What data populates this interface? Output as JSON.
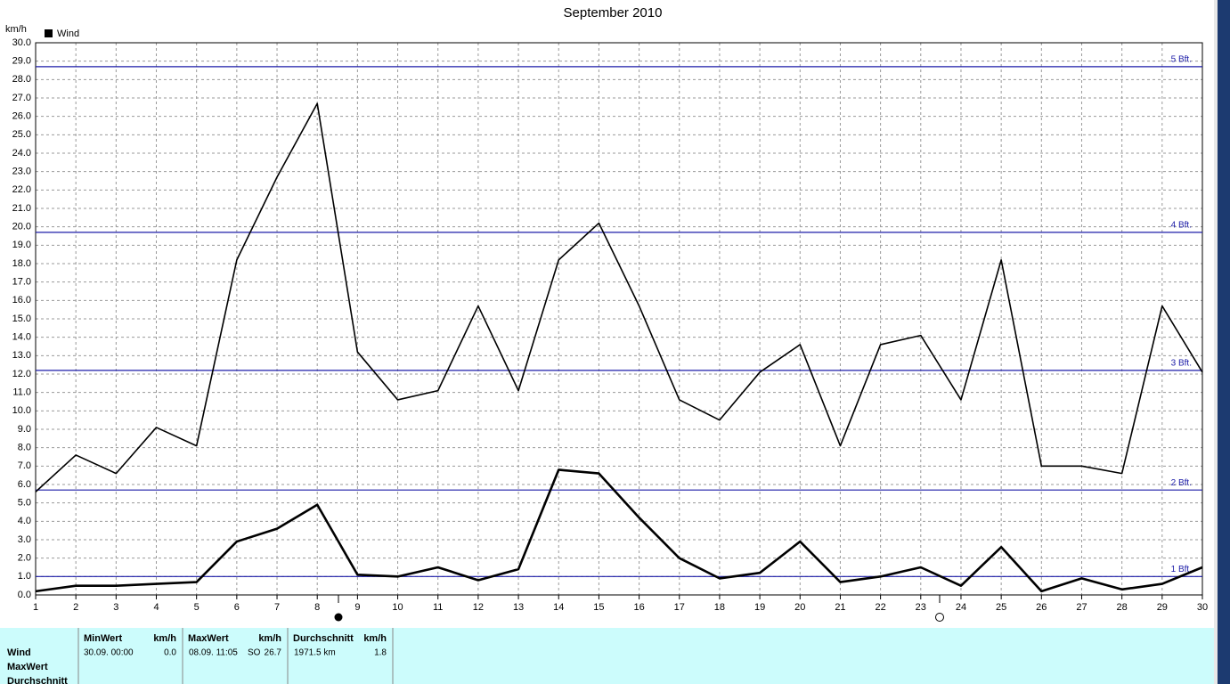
{
  "chart_data": {
    "type": "line",
    "title": "September 2010",
    "y_label": "km/h",
    "x": [
      1,
      2,
      3,
      4,
      5,
      6,
      7,
      8,
      9,
      10,
      11,
      12,
      13,
      14,
      15,
      16,
      17,
      18,
      19,
      20,
      21,
      22,
      23,
      24,
      25,
      26,
      27,
      28,
      29,
      30
    ],
    "xlim": [
      1,
      30
    ],
    "xticks": [
      1,
      2,
      3,
      4,
      5,
      6,
      7,
      8,
      9,
      10,
      11,
      12,
      13,
      14,
      15,
      16,
      17,
      18,
      19,
      20,
      21,
      22,
      23,
      24,
      25,
      26,
      27,
      28,
      29,
      30
    ],
    "ylim": [
      0,
      30
    ],
    "yticks": [
      {
        "value": 0,
        "label": "0.0"
      },
      {
        "value": 1,
        "label": "1.0"
      },
      {
        "value": 2,
        "label": "2.0"
      },
      {
        "value": 3,
        "label": "3.0"
      },
      {
        "value": 4,
        "label": "4.0"
      },
      {
        "value": 5,
        "label": "5.0"
      },
      {
        "value": 6,
        "label": "6.0"
      },
      {
        "value": 7,
        "label": "7.0"
      },
      {
        "value": 8,
        "label": "8.0"
      },
      {
        "value": 9,
        "label": "9.0"
      },
      {
        "value": 10,
        "label": "10.0"
      },
      {
        "value": 11,
        "label": "11.0"
      },
      {
        "value": 12,
        "label": "12.0"
      },
      {
        "value": 13,
        "label": "13.0"
      },
      {
        "value": 14,
        "label": "14.0"
      },
      {
        "value": 15,
        "label": "15.0"
      },
      {
        "value": 16,
        "label": "16.0"
      },
      {
        "value": 17,
        "label": "17.0"
      },
      {
        "value": 18,
        "label": "18.0"
      },
      {
        "value": 19,
        "label": "19.0"
      },
      {
        "value": 20,
        "label": "20.0"
      },
      {
        "value": 21,
        "label": "21.0"
      },
      {
        "value": 22,
        "label": "22.0"
      },
      {
        "value": 23,
        "label": "23.0"
      },
      {
        "value": 24,
        "label": "24.0"
      },
      {
        "value": 25,
        "label": "25.0"
      },
      {
        "value": 26,
        "label": "26.0"
      },
      {
        "value": 27,
        "label": "27.0"
      },
      {
        "value": 28,
        "label": "28.0"
      },
      {
        "value": 29,
        "label": "29.0"
      },
      {
        "value": 30,
        "label": "30.0"
      }
    ],
    "grid": true,
    "series": [
      {
        "name": "Wind",
        "color": "#000000",
        "values": [
          0.2,
          0.5,
          0.5,
          0.6,
          0.7,
          2.9,
          3.6,
          4.9,
          1.1,
          1.0,
          1.5,
          0.8,
          1.4,
          6.8,
          6.6,
          4.2,
          2.0,
          0.9,
          1.2,
          2.9,
          0.7,
          1.0,
          1.5,
          0.5,
          2.6,
          0.2,
          0.9,
          0.3,
          0.6,
          1.5
        ]
      },
      {
        "color": "#000000",
        "values": [
          5.6,
          7.6,
          6.6,
          9.1,
          8.1,
          18.2,
          22.7,
          26.7,
          13.2,
          10.6,
          11.1,
          15.7,
          11.1,
          18.2,
          20.2,
          15.7,
          10.6,
          9.5,
          12.1,
          13.6,
          8.1,
          13.6,
          14.1,
          10.6,
          18.2,
          7.0,
          7.0,
          6.6,
          15.7,
          12.1
        ]
      }
    ],
    "reference_lines": {
      "color": "#1c1ca8",
      "lines": [
        {
          "value": 1.0,
          "label": "1 Bft."
        },
        {
          "value": 5.7,
          "label": "2 Bft."
        },
        {
          "value": 12.2,
          "label": "3 Bft."
        },
        {
          "value": 19.7,
          "label": "4 Bft."
        },
        {
          "value": 28.7,
          "label": "5 Bft."
        }
      ]
    }
  },
  "stats": {
    "row_labels": [
      "Wind",
      "MaxWert",
      "Durchschnitt"
    ],
    "columns": [
      {
        "header": "MinWert",
        "unit": "km/h",
        "cells": [
          "30.09.  00:00",
          "0.0"
        ]
      },
      {
        "header": "MaxWert",
        "unit": "km/h",
        "cells": [
          "08.09.  11:05",
          "SO",
          "26.7"
        ]
      },
      {
        "header": "Durchschnitt",
        "unit": "km/h",
        "cells": [
          "1971.5 km",
          "1.8"
        ]
      }
    ]
  }
}
